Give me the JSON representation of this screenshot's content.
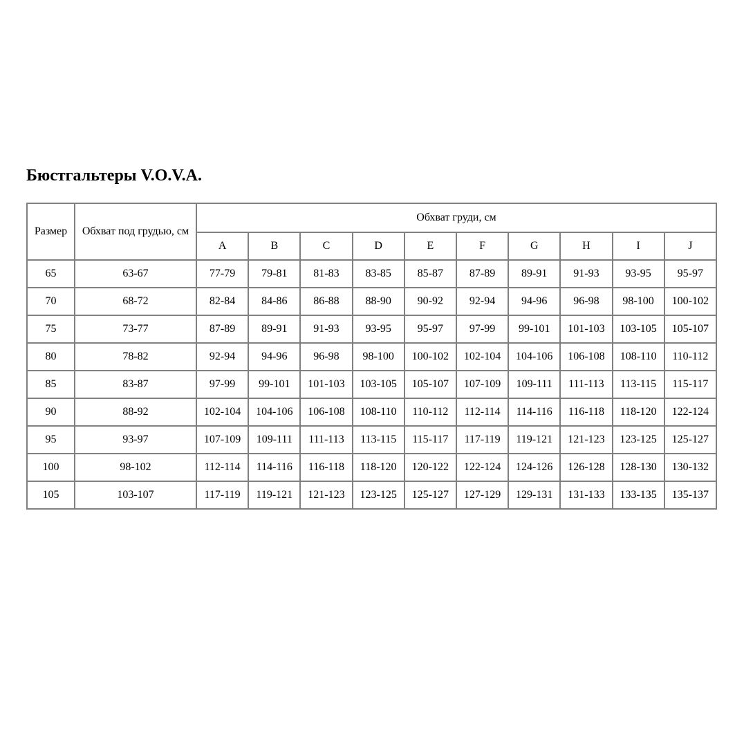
{
  "title": "Бюстгальтеры V.O.V.A.",
  "table": {
    "headers": {
      "size": "Размер",
      "underbust": "Обхват под грудью, см",
      "bust_group": "Обхват груди, см",
      "cups": [
        "A",
        "B",
        "C",
        "D",
        "E",
        "F",
        "G",
        "H",
        "I",
        "J"
      ]
    },
    "rows": [
      {
        "size": "65",
        "underbust": "63-67",
        "cups": [
          "77-79",
          "79-81",
          "81-83",
          "83-85",
          "85-87",
          "87-89",
          "89-91",
          "91-93",
          "93-95",
          "95-97"
        ]
      },
      {
        "size": "70",
        "underbust": "68-72",
        "cups": [
          "82-84",
          "84-86",
          "86-88",
          "88-90",
          "90-92",
          "92-94",
          "94-96",
          "96-98",
          "98-100",
          "100-102"
        ]
      },
      {
        "size": "75",
        "underbust": "73-77",
        "cups": [
          "87-89",
          "89-91",
          "91-93",
          "93-95",
          "95-97",
          "97-99",
          "99-101",
          "101-103",
          "103-105",
          "105-107"
        ]
      },
      {
        "size": "80",
        "underbust": "78-82",
        "cups": [
          "92-94",
          "94-96",
          "96-98",
          "98-100",
          "100-102",
          "102-104",
          "104-106",
          "106-108",
          "108-110",
          "110-112"
        ]
      },
      {
        "size": "85",
        "underbust": "83-87",
        "cups": [
          "97-99",
          "99-101",
          "101-103",
          "103-105",
          "105-107",
          "107-109",
          "109-111",
          "111-113",
          "113-115",
          "115-117"
        ]
      },
      {
        "size": "90",
        "underbust": "88-92",
        "cups": [
          "102-104",
          "104-106",
          "106-108",
          "108-110",
          "110-112",
          "112-114",
          "114-116",
          "116-118",
          "118-120",
          "122-124"
        ]
      },
      {
        "size": "95",
        "underbust": "93-97",
        "cups": [
          "107-109",
          "109-111",
          "111-113",
          "113-115",
          "115-117",
          "117-119",
          "119-121",
          "121-123",
          "123-125",
          "125-127"
        ]
      },
      {
        "size": "100",
        "underbust": "98-102",
        "cups": [
          "112-114",
          "114-116",
          "116-118",
          "118-120",
          "120-122",
          "122-124",
          "124-126",
          "126-128",
          "128-130",
          "130-132"
        ]
      },
      {
        "size": "105",
        "underbust": "103-107",
        "cups": [
          "117-119",
          "119-121",
          "121-123",
          "123-125",
          "125-127",
          "127-129",
          "129-131",
          "131-133",
          "133-135",
          "135-137"
        ]
      }
    ]
  },
  "colors": {
    "background": "#ffffff",
    "text": "#000000",
    "border": "#808080"
  }
}
